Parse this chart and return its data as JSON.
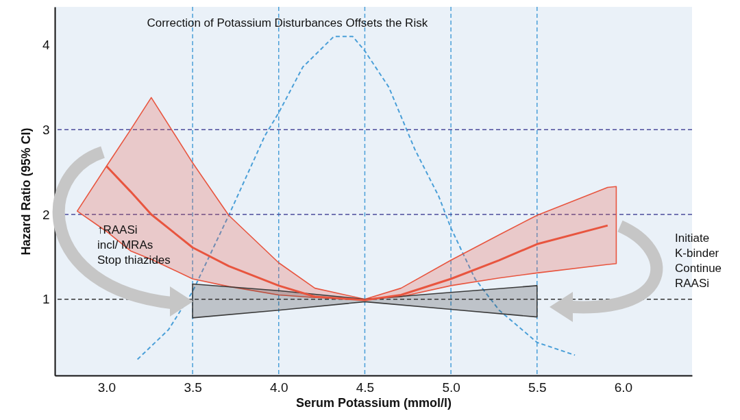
{
  "chart_data": {
    "type": "line",
    "title": "Correction of Potassium Disturbances Offsets the Risk",
    "xlabel": "Serum Potassium (mmol/l)",
    "ylabel": "Hazard Ratio (95% CI)",
    "xlim": [
      2.7,
      6.4
    ],
    "ylim": [
      0.1,
      4.45
    ],
    "xticks": [
      {
        "value": 3,
        "label": "3.0"
      },
      3.5,
      {
        "value": 4,
        "label": "4.0"
      },
      4.5,
      {
        "value": 5,
        "label": "5.0"
      },
      5.5,
      {
        "value": 6,
        "label": "6.0"
      }
    ],
    "yticks": [
      1,
      2,
      3,
      4
    ],
    "grid": false,
    "series": [
      {
        "color": "#4a9fd8",
        "line_style": "dashed",
        "x": [
          3.18,
          3.36,
          3.5,
          3.71,
          3.92,
          4.0,
          4.14,
          4.32,
          4.43,
          4.5,
          4.64,
          4.79,
          4.93,
          5.0,
          5.14,
          5.28,
          5.5,
          5.72
        ],
        "values": [
          0.29,
          0.64,
          1.09,
          1.99,
          2.93,
          3.2,
          3.74,
          4.1,
          4.1,
          3.93,
          3.5,
          2.77,
          2.21,
          1.84,
          1.24,
          0.87,
          0.49,
          0.34
        ]
      },
      {
        "color": "#e8553f",
        "line_style": "solid",
        "x": [
          2.83,
          3.0,
          3.14,
          3.26,
          3.5,
          3.71,
          4.0,
          4.21,
          4.5,
          4.71,
          5.0,
          5.28,
          5.5,
          5.91,
          5.96
        ],
        "values": [
          null,
          2.57,
          2.27,
          2.0,
          1.61,
          1.39,
          1.16,
          1.03,
          0.99,
          1.05,
          1.24,
          1.46,
          1.65,
          1.87,
          null
        ],
        "lower": [
          2.04,
          1.8,
          1.57,
          1.47,
          1.24,
          1.15,
          1.05,
          1.02,
          1.0,
          1.03,
          1.16,
          1.25,
          1.31,
          1.41,
          1.42
        ],
        "upper": [
          2.04,
          2.57,
          3.0,
          3.38,
          2.61,
          1.99,
          1.43,
          1.13,
          1.0,
          1.13,
          1.46,
          1.76,
          1.99,
          2.32,
          2.33
        ]
      },
      {
        "color": "#3a3a3a",
        "x": [
          3.5,
          4.0,
          4.5,
          5.0,
          5.5
        ],
        "values": [
          null,
          null,
          null,
          null,
          null
        ],
        "lower": [
          0.78,
          0.87,
          0.97,
          0.88,
          0.79
        ],
        "upper": [
          1.18,
          1.1,
          1.0,
          1.08,
          1.16
        ]
      }
    ],
    "ref_lines": [
      {
        "axis": "x",
        "value": 3.5,
        "color": "#4a9fd8",
        "line_style": "dashed"
      },
      {
        "axis": "x",
        "value": 4.0,
        "color": "#4a9fd8",
        "line_style": "dashed"
      },
      {
        "axis": "x",
        "value": 4.5,
        "color": "#4a9fd8",
        "line_style": "dashed"
      },
      {
        "axis": "x",
        "value": 5.0,
        "color": "#4a9fd8",
        "line_style": "dashed"
      },
      {
        "axis": "x",
        "value": 5.5,
        "color": "#4a9fd8",
        "line_style": "dashed"
      },
      {
        "axis": "y",
        "value": 1,
        "color": "#333333",
        "line_style": "dashed"
      },
      {
        "axis": "y",
        "value": 2,
        "color": "#4b4b9b",
        "line_style": "dashed"
      },
      {
        "axis": "y",
        "value": 3,
        "color": "#4b4b9b",
        "line_style": "dashed"
      }
    ],
    "annotations": [
      "↑RAASi\nincl/ MRAs\nStop thiazides",
      "Initiate\nK-binder\nContinue\nRAASi"
    ]
  }
}
